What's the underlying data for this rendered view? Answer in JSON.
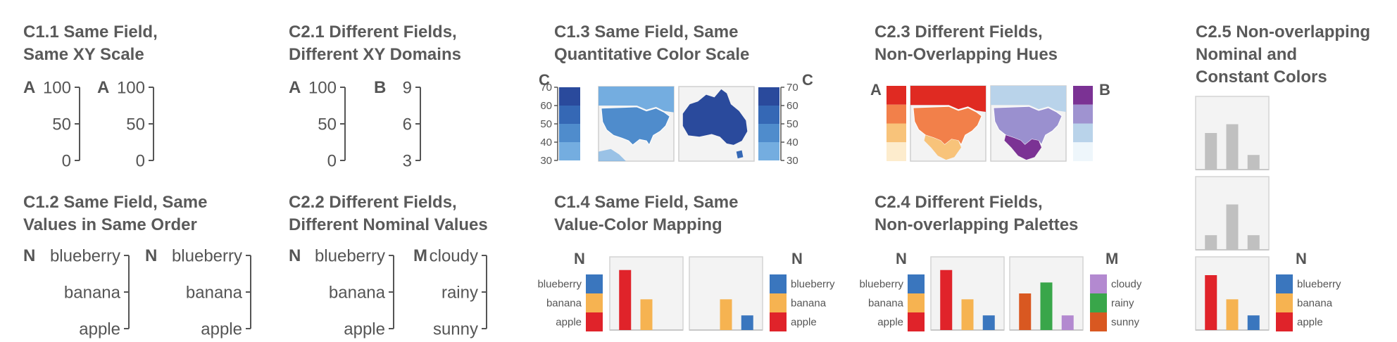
{
  "titles": {
    "c11": [
      "C1.1 Same Field,",
      "Same XY Scale"
    ],
    "c21": [
      "C2.1 Different Fields,",
      "Different XY Domains"
    ],
    "c13": [
      "C1.3 Same Field, Same",
      "Quantitative Color Scale"
    ],
    "c23": [
      "C2.3 Different Fields,",
      "Non-Overlapping Hues"
    ],
    "c25": [
      "C2.5 Non-overlapping",
      "Nominal and",
      "Constant Colors"
    ],
    "c12": [
      "C1.2 Same Field, Same",
      "Values in Same Order"
    ],
    "c22": [
      "C2.2 Different Fields,",
      "Different Nominal Values"
    ],
    "c14": [
      "C1.4 Same Field, Same",
      "Value-Color Mapping"
    ],
    "c24": [
      "C2.4 Different Fields,",
      "Non-overlapping Palettes"
    ]
  },
  "c11": {
    "axes": [
      {
        "field": "A",
        "ticks": [
          "100",
          "50",
          "0"
        ]
      },
      {
        "field": "A",
        "ticks": [
          "100",
          "50",
          "0"
        ]
      }
    ]
  },
  "c21": {
    "axes": [
      {
        "field": "A",
        "ticks": [
          "100",
          "50",
          "0"
        ]
      },
      {
        "field": "B",
        "ticks": [
          "9",
          "6",
          "3"
        ]
      }
    ]
  },
  "c12": {
    "axes": [
      {
        "field": "N",
        "ticks": [
          "blueberry",
          "banana",
          "apple"
        ]
      },
      {
        "field": "N",
        "ticks": [
          "blueberry",
          "banana",
          "apple"
        ]
      }
    ]
  },
  "c22": {
    "axes": [
      {
        "field": "N",
        "ticks": [
          "blueberry",
          "banana",
          "apple"
        ]
      },
      {
        "field": "M",
        "ticks": [
          "cloudy",
          "rainy",
          "sunny"
        ]
      }
    ]
  },
  "c13": {
    "field_left": "C",
    "field_right": "C",
    "ticks": [
      "70",
      "60",
      "50",
      "40",
      "30"
    ],
    "scale_colors": [
      "#2a4a9c",
      "#3568b5",
      "#4f8ccc",
      "#74ade0"
    ],
    "map_left": {
      "ocean": "#74ade0",
      "land": "#4f8ccc",
      "north": "#74ade0"
    },
    "map_right": {
      "land": "#2a4a9c",
      "accent": "#3568b5"
    }
  },
  "c23": {
    "field_left": "A",
    "field_right": "B",
    "left_colors": [
      "#e02a22",
      "#f2804a",
      "#f8c37a",
      "#fdeccd"
    ],
    "right_colors": [
      "#7b3294",
      "#9f93d0",
      "#b9d3ea",
      "#eef6fb"
    ],
    "map_left": {
      "north": "#e02a22",
      "land": "#f2804a",
      "south": "#f8c37a"
    },
    "map_right": {
      "north": "#b9d3ea",
      "land": "#9a90cf",
      "south": "#7b3294"
    }
  },
  "c14": {
    "legend_field": "N",
    "legend_labels": [
      "blueberry",
      "banana",
      "apple"
    ],
    "legend_colors": [
      "#3a76be",
      "#f6b351",
      "#e0232a"
    ],
    "chart1": {
      "categories": [
        "apple",
        "banana",
        "blueberry"
      ],
      "values": [
        0.82,
        0.42,
        0
      ],
      "colors": [
        "#e0232a",
        "#f6b351",
        "#3a76be"
      ]
    },
    "chart2": {
      "categories": [
        "apple",
        "banana",
        "blueberry"
      ],
      "values": [
        0,
        0.42,
        0.2
      ],
      "colors": [
        "#e0232a",
        "#f6b351",
        "#3a76be"
      ]
    }
  },
  "c24": {
    "legend_left_field": "N",
    "legend_left_labels": [
      "blueberry",
      "banana",
      "apple"
    ],
    "legend_left_colors": [
      "#3a76be",
      "#f6b351",
      "#e0232a"
    ],
    "legend_right_field": "M",
    "legend_right_labels": [
      "cloudy",
      "rainy",
      "sunny"
    ],
    "legend_right_colors": [
      "#b389d0",
      "#39a64a",
      "#d95821"
    ],
    "chart1": {
      "values": [
        0.82,
        0.42,
        0.2
      ],
      "colors": [
        "#e0232a",
        "#f6b351",
        "#3a76be"
      ]
    },
    "chart2": {
      "values": [
        0.5,
        0.65,
        0.2
      ],
      "colors": [
        "#d95821",
        "#39a64a",
        "#b389d0"
      ]
    }
  },
  "c25": {
    "legend_field": "N",
    "legend_labels": [
      "blueberry",
      "banana",
      "apple"
    ],
    "legend_colors": [
      "#3a76be",
      "#f6b351",
      "#e0232a"
    ],
    "gray": "#c0c0c0",
    "chart1": {
      "values": [
        0.5,
        0.62,
        0.2
      ]
    },
    "chart2": {
      "values": [
        0.2,
        0.62,
        0.2
      ]
    },
    "chart3": {
      "values": [
        0.75,
        0.42,
        0.2
      ],
      "colors": [
        "#e0232a",
        "#f6b351",
        "#3a76be"
      ]
    }
  }
}
